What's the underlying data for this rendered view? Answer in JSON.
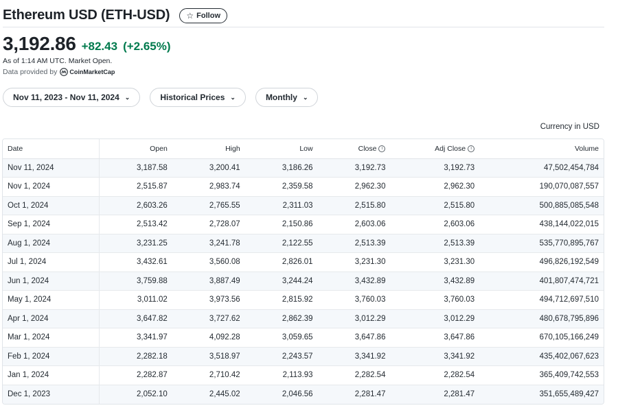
{
  "header": {
    "title": "Ethereum USD (ETH-USD)",
    "follow_label": "Follow"
  },
  "quote": {
    "price": "3,192.86",
    "change": "+82.43",
    "change_pct": "(+2.65%)",
    "as_of": "As of 1:14 AM UTC. Market Open.",
    "provider_label": "Data provided by",
    "provider_name": "CoinMarketCap"
  },
  "filters": {
    "date_range": "Nov 11, 2023 - Nov 11, 2024",
    "type": "Historical Prices",
    "frequency": "Monthly"
  },
  "currency_note": "Currency in USD",
  "table": {
    "columns": [
      "Date",
      "Open",
      "High",
      "Low",
      "Close",
      "Adj Close",
      "Volume"
    ],
    "rows": [
      [
        "Nov 11, 2024",
        "3,187.58",
        "3,200.41",
        "3,186.26",
        "3,192.73",
        "3,192.73",
        "47,502,454,784"
      ],
      [
        "Nov 1, 2024",
        "2,515.87",
        "2,983.74",
        "2,359.58",
        "2,962.30",
        "2,962.30",
        "190,070,087,557"
      ],
      [
        "Oct 1, 2024",
        "2,603.26",
        "2,765.55",
        "2,311.03",
        "2,515.80",
        "2,515.80",
        "500,885,085,548"
      ],
      [
        "Sep 1, 2024",
        "2,513.42",
        "2,728.07",
        "2,150.86",
        "2,603.06",
        "2,603.06",
        "438,144,022,015"
      ],
      [
        "Aug 1, 2024",
        "3,231.25",
        "3,241.78",
        "2,122.55",
        "2,513.39",
        "2,513.39",
        "535,770,895,767"
      ],
      [
        "Jul 1, 2024",
        "3,432.61",
        "3,560.08",
        "2,826.01",
        "3,231.30",
        "3,231.30",
        "496,826,192,549"
      ],
      [
        "Jun 1, 2024",
        "3,759.88",
        "3,887.49",
        "3,244.24",
        "3,432.89",
        "3,432.89",
        "401,807,474,721"
      ],
      [
        "May 1, 2024",
        "3,011.02",
        "3,973.56",
        "2,815.92",
        "3,760.03",
        "3,760.03",
        "494,712,697,510"
      ],
      [
        "Apr 1, 2024",
        "3,647.82",
        "3,727.62",
        "2,862.39",
        "3,012.29",
        "3,012.29",
        "480,678,795,896"
      ],
      [
        "Mar 1, 2024",
        "3,341.97",
        "4,092.28",
        "3,059.65",
        "3,647.86",
        "3,647.86",
        "670,105,166,249"
      ],
      [
        "Feb 1, 2024",
        "2,282.18",
        "3,518.97",
        "2,243.57",
        "3,341.92",
        "3,341.92",
        "435,402,067,623"
      ],
      [
        "Jan 1, 2024",
        "2,282.87",
        "2,710.42",
        "2,113.93",
        "2,282.54",
        "2,282.54",
        "365,409,742,553"
      ],
      [
        "Dec 1, 2023",
        "2,052.10",
        "2,445.02",
        "2,046.56",
        "2,281.47",
        "2,281.47",
        "351,655,489,427"
      ]
    ]
  },
  "colors": {
    "positive": "#007a4d",
    "text": "#232a31",
    "row_alt": "#f5f8fb"
  },
  "icons": {
    "follow": "star-icon",
    "dropdown": "chevron-down-icon",
    "info": "info-icon",
    "provider": "coinmarketcap-logo"
  }
}
